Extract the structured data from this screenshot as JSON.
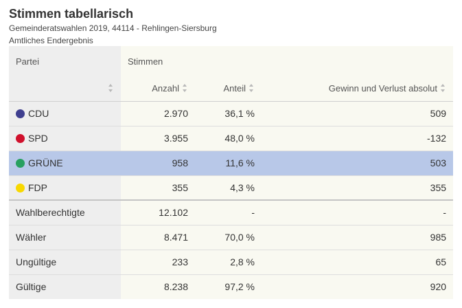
{
  "header": {
    "title": "Stimmen tabellarisch",
    "subtitle": "Gemeinderatswahlen 2019, 44114 - Rehlingen-Siersburg",
    "subtitle2": "Amtliches Endergebnis"
  },
  "table": {
    "group_headers": {
      "partei": "Partei",
      "stimmen": "Stimmen"
    },
    "columns": {
      "anzahl": "Anzahl",
      "anteil": "Anteil",
      "gewinn": "Gewinn und Verlust absolut"
    },
    "parties": [
      {
        "name": "CDU",
        "color": "#3f3f8f",
        "anzahl": "2.970",
        "anteil": "36,1 %",
        "gewinn": "509"
      },
      {
        "name": "SPD",
        "color": "#d0102c",
        "anzahl": "3.955",
        "anteil": "48,0 %",
        "gewinn": "-132"
      },
      {
        "name": "GRÜNE",
        "color": "#28a060",
        "anzahl": "958",
        "anteil": "11,6 %",
        "gewinn": "503"
      },
      {
        "name": "FDP",
        "color": "#f8d800",
        "anzahl": "355",
        "anteil": "4,3 %",
        "gewinn": "355"
      }
    ],
    "summary": [
      {
        "name": "Wahlberechtigte",
        "anzahl": "12.102",
        "anteil": "-",
        "gewinn": "-"
      },
      {
        "name": "Wähler",
        "anzahl": "8.471",
        "anteil": "70,0 %",
        "gewinn": "985"
      },
      {
        "name": "Ungültige",
        "anzahl": "233",
        "anteil": "2,8 %",
        "gewinn": "65"
      },
      {
        "name": "Gültige",
        "anzahl": "8.238",
        "anteil": "97,2 %",
        "gewinn": "920"
      }
    ]
  }
}
